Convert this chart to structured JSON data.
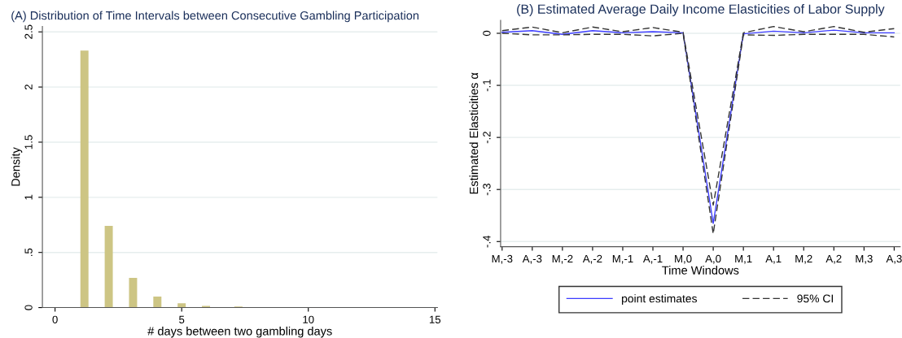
{
  "chart_data": [
    {
      "type": "histogram",
      "title": "(A) Distribution of Time Intervals between Consecutive Gambling Participation",
      "xlabel": "# days between two gambling days",
      "ylabel": "Density",
      "bins": [
        1.0,
        1.32,
        1.64,
        1.96,
        2.28,
        2.6,
        2.92,
        3.24,
        3.56,
        3.88,
        4.2,
        4.52,
        4.84,
        5.16,
        5.48,
        5.8,
        6.12,
        6.44,
        6.76,
        7.08,
        7.4,
        7.72,
        8.04,
        8.36,
        8.68,
        9.0,
        9.32,
        9.64,
        9.96,
        10.28,
        10.6,
        10.92,
        11.24,
        11.56,
        11.88,
        12.2,
        12.52,
        12.84,
        13.16
      ],
      "values": [
        2.33,
        0,
        0,
        0.74,
        0,
        0,
        0.27,
        0,
        0,
        0.1,
        0,
        0,
        0.04,
        0,
        0,
        0.015,
        0,
        0,
        0,
        0.01,
        0,
        0,
        0.005,
        0,
        0,
        0.005,
        0,
        0,
        0.005,
        0,
        0,
        0.005,
        0,
        0,
        0,
        0,
        0,
        0.005
      ],
      "color": "#cdc584",
      "xlim": [
        -0.5,
        15.1
      ],
      "xticks": [
        0,
        5,
        10,
        15
      ],
      "ylim": [
        0,
        2.55
      ],
      "yticks": [
        0,
        {
          "value": 0.5,
          "label": ".5"
        },
        1,
        {
          "value": 1.5,
          "label": "1.5"
        },
        2,
        {
          "value": 2.5,
          "label": "2.5"
        }
      ],
      "grid": "y"
    },
    {
      "type": "line",
      "title": "(B) Estimated Average Daily Income Elasticities of Labor Supply",
      "xlabel": "Time Windows",
      "ylabel": "Estimated Elasticities α",
      "categories": [
        "M,-3",
        "A,-3",
        "M,-2",
        "A,-2",
        "M,-1",
        "A,-1",
        "M,0",
        "A,0",
        "M,1",
        "A,1",
        "M,2",
        "A,2",
        "M,3",
        "A,3"
      ],
      "series": [
        {
          "name": "point estimates",
          "color": "#3c3cff",
          "line_style": "solid",
          "values": [
            0.002,
            0.005,
            -0.002,
            0.005,
            0.001,
            0.003,
            0.001,
            -0.365,
            -0.001,
            0.004,
            0.001,
            0.006,
            0.001,
            0.001
          ]
        },
        {
          "name": "95% CI",
          "color": "#333333",
          "line_style": "dashed",
          "values": [
            0.005,
            0.012,
            0.001,
            0.012,
            0.003,
            0.011,
            0.002,
            -0.33,
            0.001,
            0.013,
            0.003,
            0.013,
            0.002,
            0.009
          ]
        },
        {
          "color": "#333333",
          "line_style": "dashed",
          "values": [
            0.0,
            -0.003,
            -0.003,
            -0.002,
            -0.002,
            -0.005,
            0.0,
            -0.385,
            -0.003,
            -0.004,
            -0.002,
            -0.002,
            -0.002,
            -0.007
          ]
        }
      ],
      "ylim": [
        -0.41,
        0.025
      ],
      "yticks": [
        {
          "value": -0.4,
          "label": "-.4"
        },
        {
          "value": -0.3,
          "label": "-.3"
        },
        {
          "value": -0.2,
          "label": "-.2"
        },
        {
          "value": -0.1,
          "label": "-.1"
        },
        0
      ],
      "grid": "y",
      "legend": "bottom"
    }
  ]
}
